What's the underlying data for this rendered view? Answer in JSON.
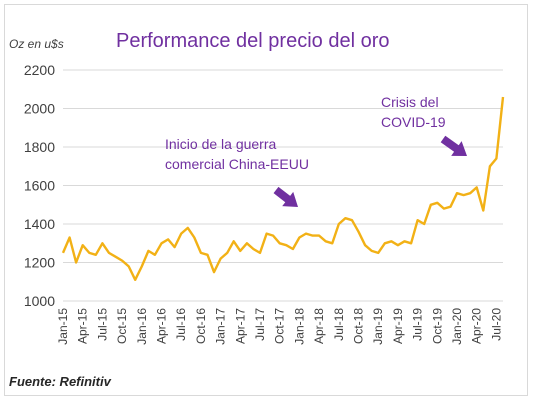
{
  "chart_data": {
    "type": "line",
    "title": "Performance del precio del oro",
    "ylabel": "Oz en u$s",
    "source": "Fuente: Refinitiv",
    "ylim": [
      1000,
      2200
    ],
    "yticks": [
      1000,
      1200,
      1400,
      1600,
      1800,
      2000,
      2200
    ],
    "xticks": [
      "Jan-15",
      "Apr-15",
      "Jul-15",
      "Oct-15",
      "Jan-16",
      "Apr-16",
      "Jul-16",
      "Oct-16",
      "Jan-17",
      "Apr-17",
      "Jul-17",
      "Oct-17",
      "Jan-18",
      "Apr-18",
      "Jul-18",
      "Oct-18",
      "Jan-19",
      "Apr-19",
      "Jul-19",
      "Oct-19",
      "Jan-20",
      "Apr-20",
      "Jul-20"
    ],
    "grid": "horizontal",
    "colors": {
      "line": "#f2b116",
      "arrow": "#7030a0",
      "title": "#7030a0"
    },
    "annotations": [
      {
        "lines": [
          "Inicio de la guerra",
          "comercial China-EEUU"
        ],
        "x": "Jun-18"
      },
      {
        "lines": [
          "Crisis del",
          "COVID-19"
        ],
        "x": "Mar-20"
      }
    ],
    "series": [
      {
        "x": [
          "Jan-15",
          "Feb-15",
          "Mar-15",
          "Apr-15",
          "May-15",
          "Jun-15",
          "Jul-15",
          "Aug-15",
          "Sep-15",
          "Oct-15",
          "Nov-15",
          "Dec-15",
          "Jan-16",
          "Feb-16",
          "Mar-16",
          "Apr-16",
          "May-16",
          "Jun-16",
          "Jul-16",
          "Aug-16",
          "Sep-16",
          "Oct-16",
          "Nov-16",
          "Dec-16",
          "Jan-17",
          "Feb-17",
          "Mar-17",
          "Apr-17",
          "May-17",
          "Jun-17",
          "Jul-17",
          "Aug-17",
          "Sep-17",
          "Oct-17",
          "Nov-17",
          "Dec-17",
          "Jan-18",
          "Feb-18",
          "Mar-18",
          "Apr-18",
          "May-18",
          "Jun-18",
          "Jul-18",
          "Aug-18",
          "Sep-18",
          "Oct-18",
          "Nov-18",
          "Dec-18",
          "Jan-19",
          "Feb-19",
          "Mar-19",
          "Apr-19",
          "May-19",
          "Jun-19",
          "Jul-19",
          "Aug-19",
          "Sep-19",
          "Oct-19",
          "Nov-19",
          "Dec-19",
          "Jan-20",
          "Feb-20",
          "Mar-20",
          "Apr-20",
          "May-20",
          "Jun-20",
          "Jul-20",
          "Aug-20"
        ],
        "values": [
          1250,
          1330,
          1200,
          1290,
          1250,
          1240,
          1300,
          1250,
          1230,
          1210,
          1180,
          1110,
          1180,
          1260,
          1240,
          1300,
          1320,
          1280,
          1350,
          1380,
          1330,
          1250,
          1240,
          1150,
          1220,
          1250,
          1310,
          1260,
          1300,
          1270,
          1250,
          1350,
          1340,
          1300,
          1290,
          1270,
          1330,
          1350,
          1340,
          1340,
          1310,
          1300,
          1400,
          1430,
          1420,
          1360,
          1290,
          1260,
          1250,
          1300,
          1310,
          1290,
          1310,
          1300,
          1420,
          1400,
          1500,
          1510,
          1480,
          1490,
          1560,
          1550,
          1560,
          1590,
          1470,
          1700,
          1740,
          2060
        ]
      }
    ]
  }
}
